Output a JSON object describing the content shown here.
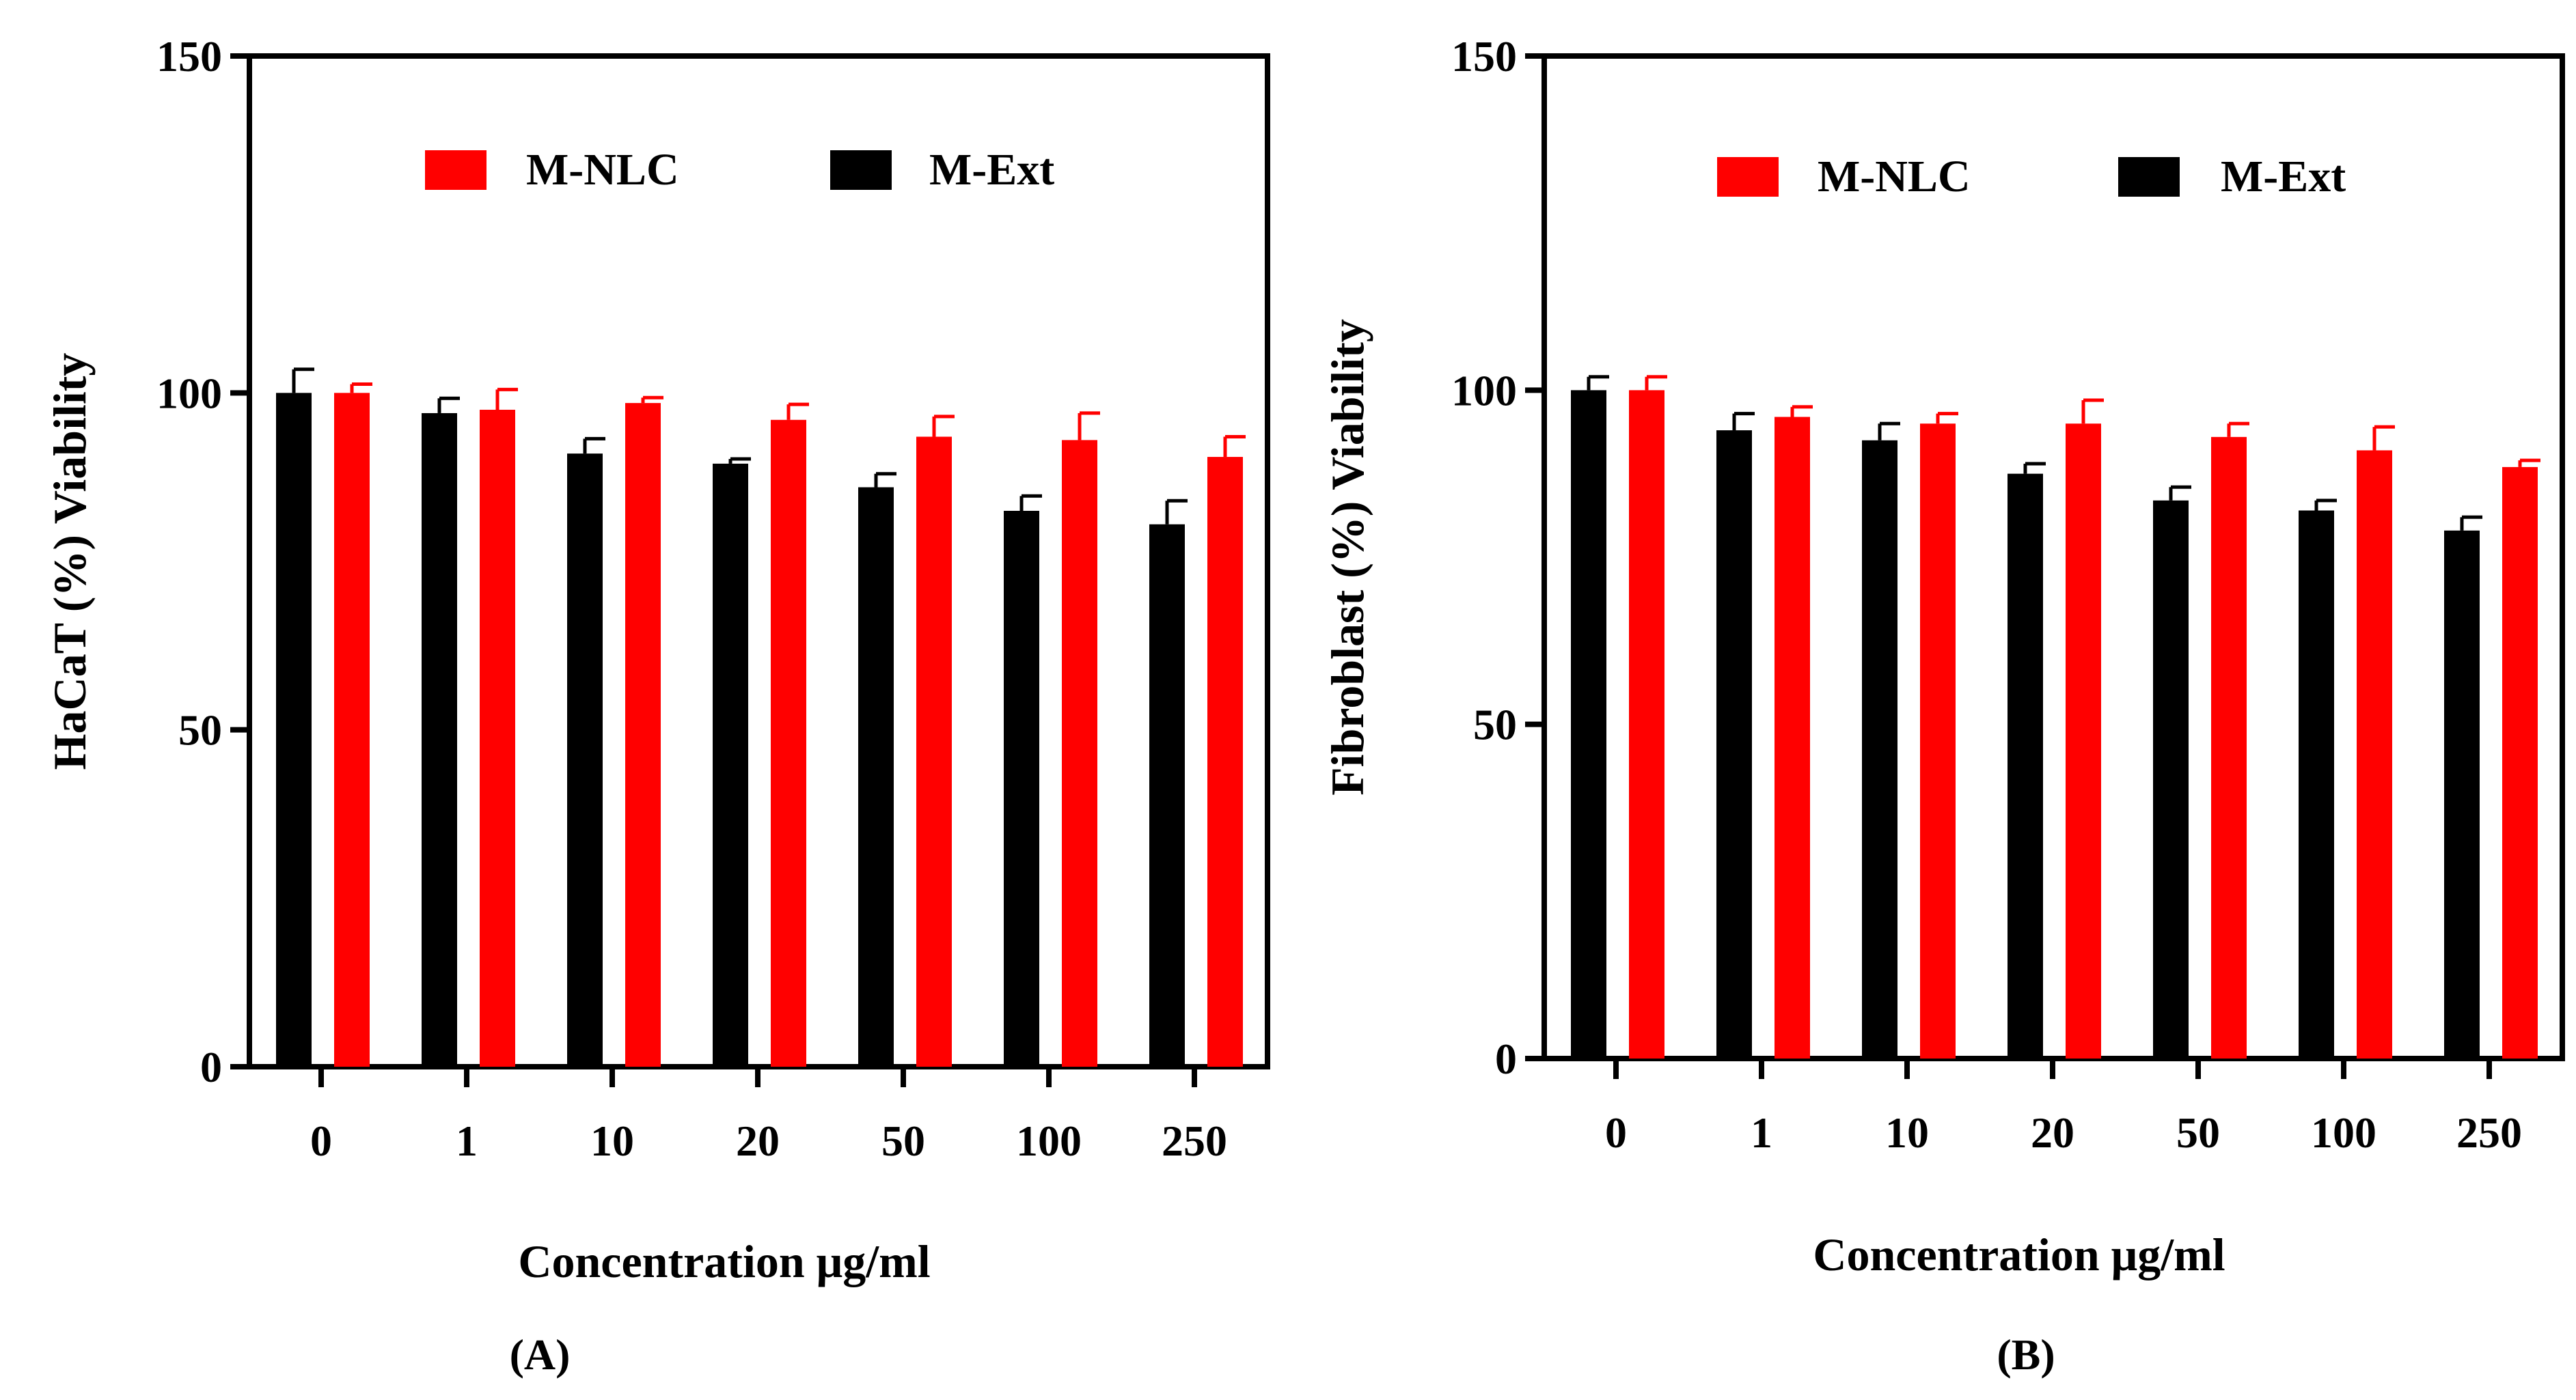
{
  "chart_data": [
    {
      "type": "bar",
      "panel_label": "A",
      "panel_label_text": "(A)",
      "xlabel": "Concentration μg/ml",
      "ylabel": "HaCaT (%) Viability",
      "categories": [
        "0",
        "1",
        "10",
        "20",
        "50",
        "100",
        "250"
      ],
      "ylim": [
        0,
        150
      ],
      "yticks": [
        "0",
        "50",
        "100",
        "150"
      ],
      "legend_position": "top",
      "series": [
        {
          "name": "M-Ext",
          "color": "#000000",
          "values": [
            100,
            97,
            91,
            89.5,
            86,
            82.5,
            80.5
          ],
          "errors": [
            3.5,
            2.2,
            2.2,
            0.7,
            2.0,
            2.2,
            3.5
          ]
        },
        {
          "name": "M-NLC",
          "color": "#ff0000",
          "values": [
            100,
            97.5,
            98.5,
            96,
            93.5,
            93,
            90.5
          ],
          "errors": [
            1.3,
            3.0,
            0.8,
            2.3,
            3.0,
            4.0,
            3.0
          ]
        }
      ]
    },
    {
      "type": "bar",
      "panel_label": "B",
      "panel_label_text": "(B)",
      "xlabel": "Concentration μg/ml",
      "ylabel": "Fibroblast (%) Viability",
      "categories": [
        "0",
        "1",
        "10",
        "20",
        "50",
        "100",
        "250"
      ],
      "ylim": [
        0,
        150
      ],
      "yticks": [
        "0",
        "50",
        "100",
        "150"
      ],
      "legend_position": "top",
      "series": [
        {
          "name": "M-Ext",
          "color": "#000000",
          "values": [
            100,
            94,
            92.5,
            87.5,
            83.5,
            82,
            79
          ],
          "errors": [
            2.0,
            2.5,
            2.5,
            1.5,
            2.0,
            1.5,
            2.0
          ]
        },
        {
          "name": "M-NLC",
          "color": "#ff0000",
          "values": [
            100,
            96,
            95,
            95,
            93,
            91,
            88.5
          ],
          "errors": [
            2.0,
            1.5,
            1.5,
            3.5,
            2.0,
            3.5,
            1.0
          ]
        }
      ]
    }
  ]
}
